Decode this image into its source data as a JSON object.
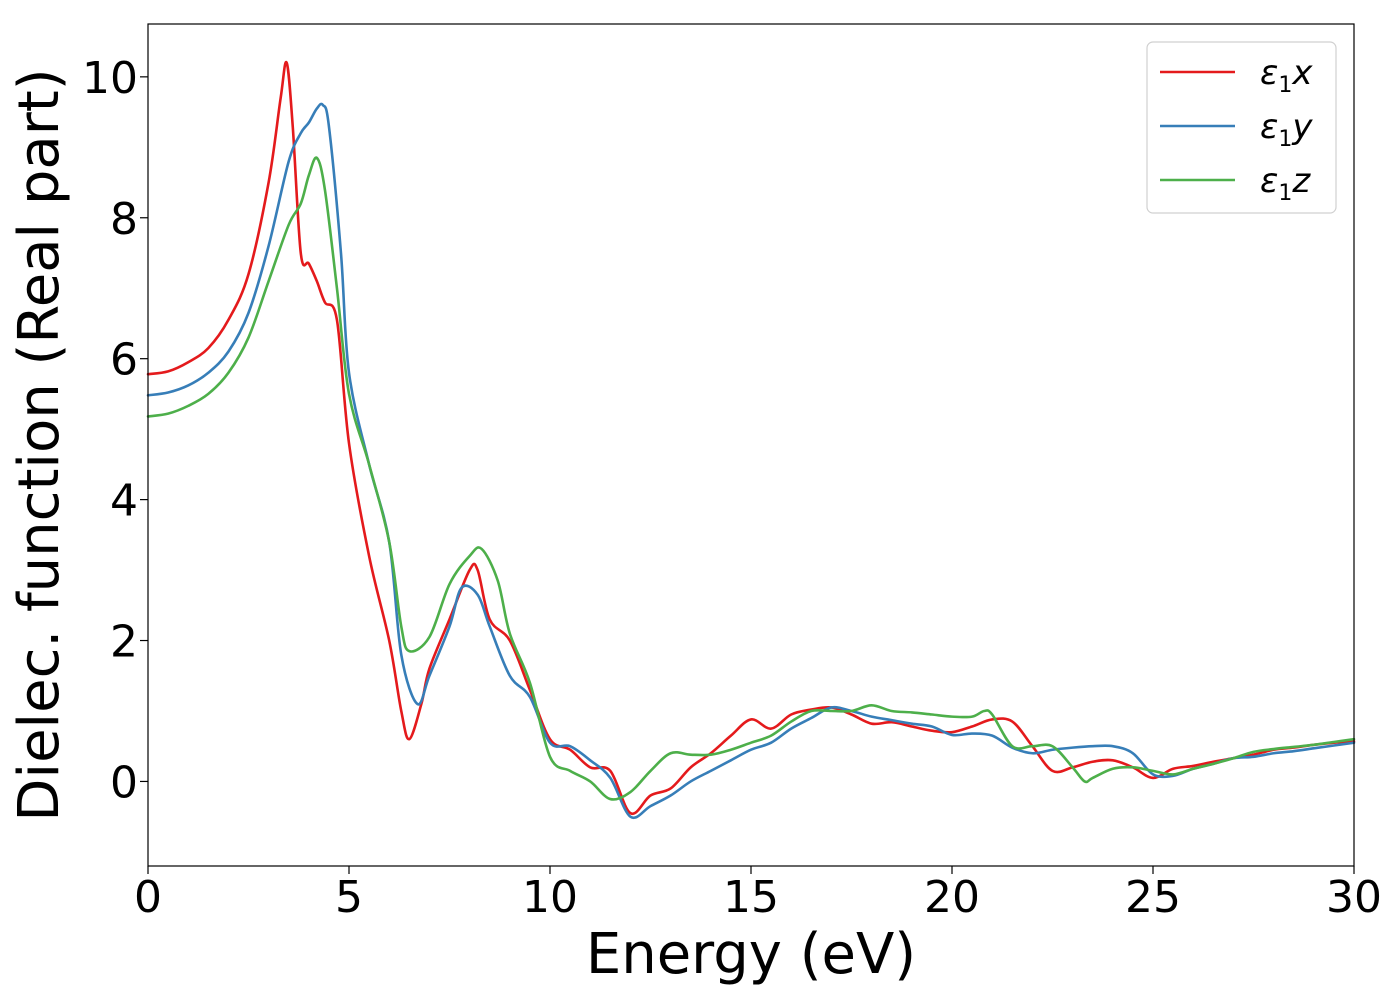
{
  "chart_data": {
    "type": "line",
    "title": "",
    "xlabel": "Energy (eV)",
    "ylabel": "Dielec. function (Real part)",
    "xlim": [
      0,
      30
    ],
    "ylim": [
      -1.2,
      10.75
    ],
    "xticks": [
      0,
      5,
      10,
      15,
      20,
      25,
      30
    ],
    "yticks": [
      0,
      2,
      4,
      6,
      8,
      10
    ],
    "xtick_labels": [
      "0",
      "5",
      "10",
      "15",
      "20",
      "25",
      "30"
    ],
    "ytick_labels": [
      "0",
      "2",
      "4",
      "6",
      "8",
      "10"
    ],
    "grid": false,
    "legend_position": "top-right",
    "series": [
      {
        "name": "ε1x",
        "legend_symbol": "ε",
        "legend_subscript": "1",
        "legend_suffix": "x",
        "color": "#e41a1c",
        "x": [
          0,
          0.5,
          1,
          1.5,
          2,
          2.5,
          3,
          3.3,
          3.45,
          3.6,
          3.8,
          4.0,
          4.2,
          4.4,
          4.7,
          5,
          5.5,
          6,
          6.3,
          6.5,
          6.8,
          7,
          7.5,
          8,
          8.2,
          8.5,
          9,
          9.5,
          10,
          10.5,
          11,
          11.5,
          12,
          12.5,
          13,
          13.5,
          14,
          14.5,
          15,
          15.5,
          16,
          16.5,
          17,
          17.5,
          18,
          18.5,
          19,
          19.5,
          20,
          20.5,
          21,
          21.5,
          22,
          22.5,
          23,
          23.5,
          24,
          24.5,
          25,
          25.5,
          26,
          26.5,
          27,
          27.5,
          28,
          28.5,
          29,
          29.5,
          30
        ],
        "y": [
          5.78,
          5.82,
          5.95,
          6.15,
          6.55,
          7.2,
          8.5,
          9.7,
          10.2,
          9.3,
          7.5,
          7.35,
          7.1,
          6.8,
          6.55,
          4.8,
          3.2,
          2.0,
          1.0,
          0.6,
          1.1,
          1.6,
          2.3,
          3.0,
          3.0,
          2.3,
          2.0,
          1.3,
          0.6,
          0.45,
          0.2,
          0.15,
          -0.45,
          -0.2,
          -0.1,
          0.2,
          0.4,
          0.65,
          0.88,
          0.75,
          0.95,
          1.02,
          1.05,
          0.95,
          0.82,
          0.84,
          0.78,
          0.72,
          0.7,
          0.78,
          0.88,
          0.85,
          0.5,
          0.15,
          0.2,
          0.28,
          0.3,
          0.2,
          0.05,
          0.18,
          0.22,
          0.28,
          0.33,
          0.38,
          0.45,
          0.48,
          0.52,
          0.55,
          0.57
        ]
      },
      {
        "name": "ε1y",
        "legend_symbol": "ε",
        "legend_subscript": "1",
        "legend_suffix": "y",
        "color": "#377eb8",
        "x": [
          0,
          0.5,
          1,
          1.5,
          2,
          2.5,
          3,
          3.5,
          3.8,
          4.0,
          4.2,
          4.35,
          4.5,
          4.8,
          5,
          5.5,
          6,
          6.3,
          6.7,
          7,
          7.5,
          7.8,
          8.2,
          8.5,
          9,
          9.5,
          10,
          10.5,
          11,
          11.5,
          12,
          12.5,
          13,
          13.5,
          14,
          14.5,
          15,
          15.5,
          16,
          16.5,
          17,
          17.5,
          18,
          18.5,
          19,
          19.5,
          20,
          20.5,
          21,
          21.5,
          22,
          22.5,
          23,
          23.5,
          24,
          24.5,
          25,
          25.5,
          26,
          26.5,
          27,
          27.5,
          28,
          28.5,
          29,
          29.5,
          30
        ],
        "y": [
          5.48,
          5.52,
          5.62,
          5.8,
          6.1,
          6.65,
          7.6,
          8.8,
          9.2,
          9.35,
          9.55,
          9.6,
          9.3,
          7.5,
          5.8,
          4.5,
          3.4,
          1.8,
          1.1,
          1.5,
          2.2,
          2.75,
          2.65,
          2.2,
          1.5,
          1.2,
          0.55,
          0.5,
          0.3,
          0.05,
          -0.5,
          -0.35,
          -0.2,
          0.0,
          0.15,
          0.3,
          0.45,
          0.55,
          0.75,
          0.9,
          1.05,
          1.0,
          0.92,
          0.87,
          0.82,
          0.78,
          0.66,
          0.68,
          0.65,
          0.48,
          0.4,
          0.45,
          0.48,
          0.5,
          0.5,
          0.4,
          0.1,
          0.08,
          0.18,
          0.25,
          0.33,
          0.35,
          0.4,
          0.43,
          0.47,
          0.51,
          0.55
        ]
      },
      {
        "name": "ε1z",
        "legend_symbol": "ε",
        "legend_subscript": "1",
        "legend_suffix": "z",
        "color": "#4daf4a",
        "x": [
          0,
          0.5,
          1,
          1.5,
          2,
          2.5,
          3,
          3.5,
          3.8,
          4.0,
          4.2,
          4.4,
          4.7,
          5,
          5.5,
          6,
          6.3,
          6.5,
          7,
          7.5,
          8,
          8.3,
          8.7,
          9,
          9.5,
          10,
          10.5,
          11,
          11.5,
          12,
          12.5,
          13,
          13.5,
          14,
          14.5,
          15,
          15.5,
          16,
          16.5,
          17,
          17.5,
          18,
          18.5,
          19,
          19.5,
          20,
          20.5,
          20.8,
          21,
          21.5,
          22,
          22.5,
          23,
          23.3,
          23.5,
          24,
          24.5,
          25,
          25.5,
          26,
          26.5,
          27,
          27.5,
          28,
          28.5,
          29,
          29.5,
          30
        ],
        "y": [
          5.18,
          5.22,
          5.33,
          5.5,
          5.8,
          6.3,
          7.1,
          7.9,
          8.2,
          8.6,
          8.85,
          8.4,
          7.0,
          5.5,
          4.5,
          3.4,
          2.2,
          1.85,
          2.05,
          2.8,
          3.2,
          3.3,
          2.85,
          2.1,
          1.4,
          0.35,
          0.15,
          0.0,
          -0.25,
          -0.15,
          0.15,
          0.4,
          0.38,
          0.38,
          0.45,
          0.55,
          0.65,
          0.85,
          1.0,
          1.0,
          1.0,
          1.08,
          1.0,
          0.98,
          0.95,
          0.92,
          0.92,
          1.0,
          0.95,
          0.5,
          0.5,
          0.5,
          0.2,
          0.0,
          0.05,
          0.18,
          0.2,
          0.15,
          0.1,
          0.18,
          0.25,
          0.33,
          0.42,
          0.46,
          0.49,
          0.52,
          0.56,
          0.6
        ]
      }
    ]
  }
}
